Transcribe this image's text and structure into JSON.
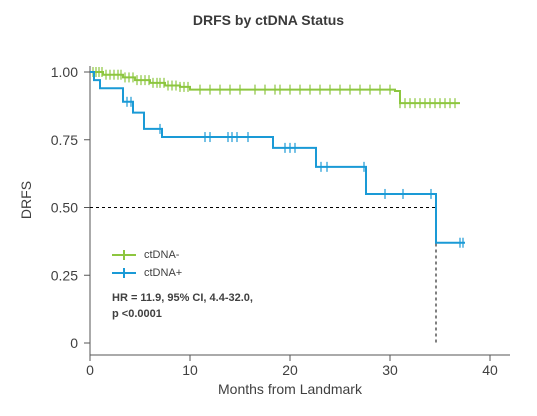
{
  "chart_data": {
    "type": "line",
    "title": "DRFS by ctDNA Status",
    "xlabel": "Months from Landmark",
    "ylabel": "DRFS",
    "xlim": [
      0,
      42
    ],
    "ylim": [
      0,
      1.0
    ],
    "x_ticks": [
      0,
      10,
      20,
      30,
      40
    ],
    "x_tick_labels": [
      "0",
      "10",
      "20",
      "30",
      "40"
    ],
    "y_ticks": [
      0,
      0.25,
      0.5,
      0.75,
      1.0
    ],
    "y_tick_labels": [
      "0",
      "0.25",
      "0.50",
      "0.75",
      "1.00"
    ],
    "grid": false,
    "legend_position": "bottom-left",
    "annotation": [
      "HR = 11.9, 95% CI, 4.4-32.0,",
      "p <0.0001"
    ],
    "median_reference": {
      "y": 0.5,
      "x": 34.6
    },
    "series": [
      {
        "name": "ctDNA-",
        "color": "#8dc63f",
        "steps": [
          [
            0,
            1.0
          ],
          [
            1.3,
            0.99
          ],
          [
            3.3,
            0.98
          ],
          [
            4.5,
            0.97
          ],
          [
            6.0,
            0.96
          ],
          [
            7.5,
            0.95
          ],
          [
            9.0,
            0.945
          ],
          [
            10.0,
            0.935
          ],
          [
            30.5,
            0.93
          ],
          [
            31.0,
            0.885
          ],
          [
            37.0,
            0.885
          ]
        ],
        "censor_x": [
          0.3,
          0.6,
          0.9,
          1.2,
          1.6,
          2.0,
          2.4,
          2.8,
          3.1,
          3.5,
          3.9,
          4.3,
          4.7,
          5.1,
          5.5,
          5.9,
          6.3,
          6.7,
          7.0,
          7.4,
          7.8,
          8.2,
          8.6,
          9.0,
          9.4,
          9.8,
          11.0,
          12.0,
          13.0,
          14.0,
          15.0,
          16.5,
          17.5,
          18.5,
          19.0,
          20.0,
          21.0,
          22.0,
          23.0,
          24.0,
          25.0,
          26.0,
          27.0,
          28.0,
          29.0,
          30.0,
          31.0,
          31.5,
          32.0,
          32.5,
          33.0,
          33.5,
          34.0,
          34.5,
          35.0,
          35.5,
          36.0,
          36.5
        ]
      },
      {
        "name": "ctDNA+",
        "color": "#1a9ad6",
        "steps": [
          [
            0,
            1.0
          ],
          [
            0.4,
            0.97
          ],
          [
            1.0,
            0.94
          ],
          [
            3.3,
            0.89
          ],
          [
            4.3,
            0.85
          ],
          [
            5.4,
            0.79
          ],
          [
            7.2,
            0.76
          ],
          [
            18.3,
            0.72
          ],
          [
            22.6,
            0.65
          ],
          [
            27.6,
            0.55
          ],
          [
            34.6,
            0.37
          ],
          [
            37.5,
            0.37
          ]
        ],
        "censor_x": [
          3.7,
          4.1,
          7.0,
          11.5,
          12.0,
          13.8,
          14.2,
          14.7,
          15.8,
          19.5,
          20.0,
          20.5,
          23.1,
          23.7,
          27.4,
          29.5,
          31.3,
          34.1,
          37.0,
          37.3
        ]
      }
    ]
  }
}
